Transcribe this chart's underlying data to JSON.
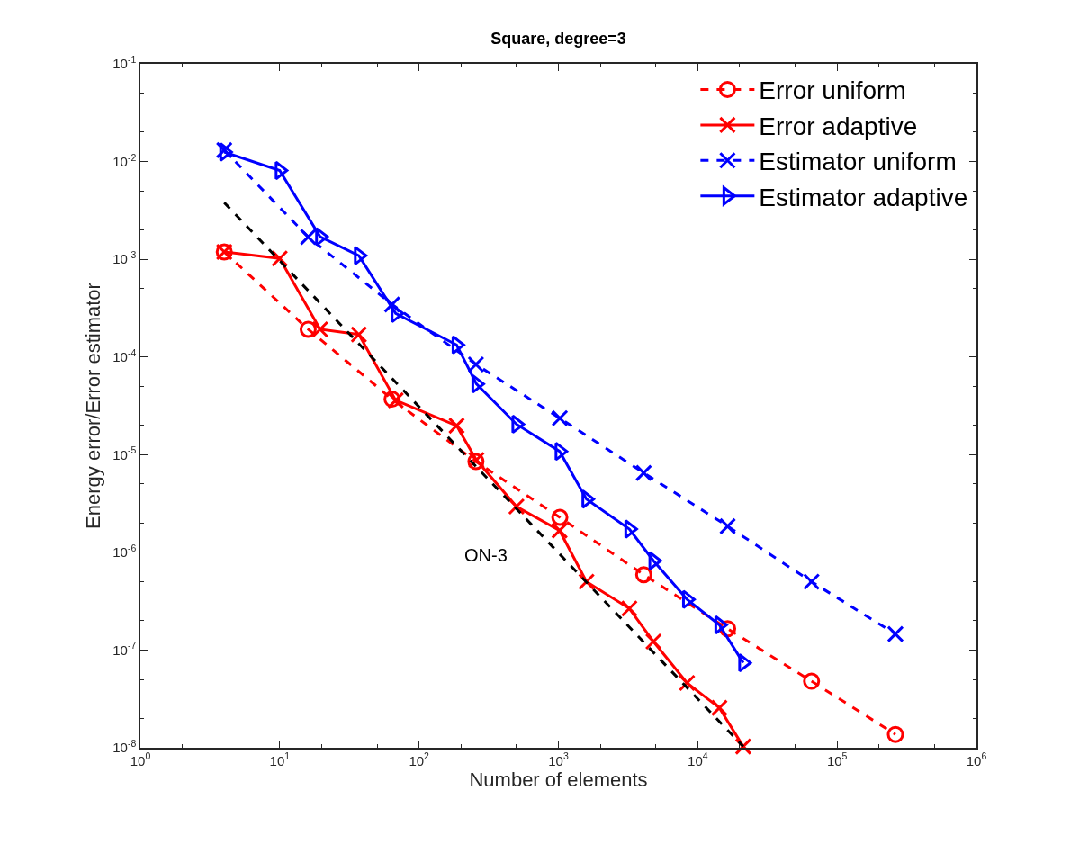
{
  "chart_data": {
    "type": "line",
    "title": "Square, degree=3",
    "xlabel": "Number of elements",
    "ylabel": "Energy error/Error estimator",
    "log": "xy",
    "legend": "top right",
    "xlim": [
      1,
      1000000
    ],
    "ylim": [
      1e-08,
      0.1
    ],
    "xticks": [
      {
        "value": 1,
        "label": "10$^{0}$"
      },
      {
        "value": 10,
        "label": "10$^{1}$"
      },
      {
        "value": 100,
        "label": "10$^{2}$"
      },
      {
        "value": 1000,
        "label": "10$^{3}$"
      },
      {
        "value": 10000,
        "label": "10$^{4}$"
      },
      {
        "value": 100000,
        "label": "10$^{5}$"
      },
      {
        "value": 1000000,
        "label": "10$^{6}$"
      }
    ],
    "yticks": [
      {
        "value": 1e-08,
        "label": "10$^{-8}$"
      },
      {
        "value": 1e-07,
        "label": "10$^{-7}$"
      },
      {
        "value": 1e-06,
        "label": "10$^{-6}$"
      },
      {
        "value": 1e-05,
        "label": "10$^{-5}$"
      },
      {
        "value": 0.0001,
        "label": "10$^{-4}$"
      },
      {
        "value": 0.001,
        "label": "10$^{-3}$"
      },
      {
        "value": 0.01,
        "label": "10$^{-2}$"
      },
      {
        "value": 0.1,
        "label": "10$^{-1}$"
      }
    ],
    "series": [
      {
        "name": "Error uniform",
        "color": "#ff0000",
        "marker": "circle",
        "line_style": "dashed",
        "x": [
          4,
          16,
          64,
          256,
          1024,
          4096,
          16384,
          65536,
          262144
        ],
        "values": [
          0.00119,
          0.000192,
          3.7e-05,
          8.5e-06,
          2.28e-06,
          5.9e-07,
          1.65e-07,
          4.8e-08,
          1.37e-08
        ]
      },
      {
        "name": "Error adaptive",
        "color": "#ff0000",
        "marker": "cross",
        "line_style": "solid",
        "x": [
          4,
          10,
          19.5,
          37,
          68,
          186,
          258,
          500,
          1020,
          1590,
          3230,
          4810,
          8380,
          14300,
          21200
        ],
        "values": [
          0.00119,
          0.00102,
          0.000192,
          0.00017,
          3.6e-05,
          1.98e-05,
          8.8e-06,
          2.94e-06,
          1.67e-06,
          5e-07,
          2.66e-07,
          1.22e-07,
          4.6e-08,
          2.56e-08,
          1.03e-08
        ]
      },
      {
        "name": "Estimator uniform",
        "color": "#0000ff",
        "marker": "cross",
        "line_style": "dashed",
        "x": [
          4,
          16,
          64,
          256,
          1024,
          4096,
          16384,
          65536,
          262144
        ],
        "values": [
          0.0131,
          0.00169,
          0.000345,
          8.4e-05,
          2.36e-05,
          6.5e-06,
          1.85e-06,
          5e-07,
          1.46e-07
        ]
      },
      {
        "name": "Estimator adaptive",
        "color": "#0000ff",
        "marker": "triangle",
        "line_style": "solid",
        "x": [
          4,
          10,
          19.5,
          37,
          68,
          186,
          258,
          500,
          1020,
          1590,
          3230,
          4810,
          8380,
          14300,
          21200
        ],
        "values": [
          0.0125,
          0.0081,
          0.0017,
          0.00109,
          0.000279,
          0.000133,
          5.3e-05,
          2.05e-05,
          1.08e-05,
          3.5e-06,
          1.73e-06,
          8.2e-07,
          3.3e-07,
          1.81e-07,
          7.4e-08
        ]
      },
      {
        "color": "#000000",
        "marker": "none",
        "line_style": "dashed",
        "x": [
          4,
          21200
        ],
        "values": [
          0.0038,
          1.03e-08
        ]
      }
    ],
    "annotations": [
      "ON-3"
    ]
  }
}
